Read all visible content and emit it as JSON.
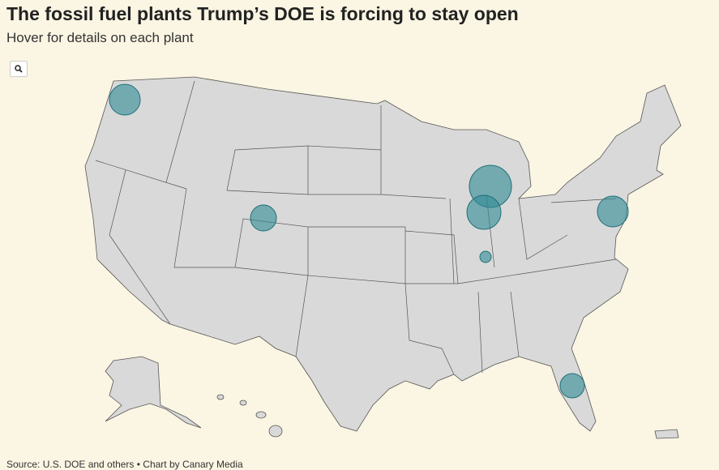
{
  "header": {
    "title": "The fossil fuel plants Trump’s DOE is forcing to stay open",
    "subtitle": "Hover for details on each plant"
  },
  "footer": {
    "source": "Source: U.S. DOE and others • Chart by Canary Media"
  }
}
